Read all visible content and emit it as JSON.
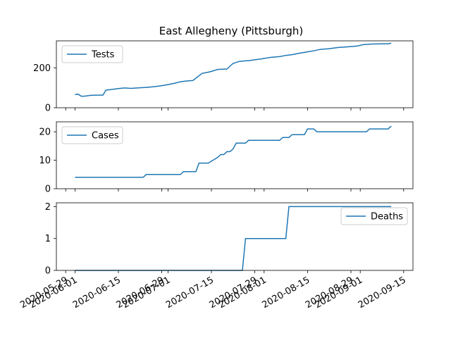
{
  "title": "East Allegheny (Pittsburgh)",
  "line_color": "#1f77b4",
  "chart_data": [
    {
      "type": "line",
      "title": "East Allegheny (Pittsburgh)",
      "xlabel": "",
      "ylabel": "",
      "xlim": [
        "2020-05-26",
        "2020-09-18"
      ],
      "ylim": [
        0,
        335
      ],
      "yticks": [
        0,
        200
      ],
      "legend_position": "top-left",
      "grid": false,
      "series": [
        {
          "name": "Tests",
          "x": [
            "2020-06-01",
            "2020-06-02",
            "2020-06-03",
            "2020-06-04",
            "2020-06-06",
            "2020-06-08",
            "2020-06-10",
            "2020-06-11",
            "2020-06-12",
            "2020-06-15",
            "2020-06-17",
            "2020-06-19",
            "2020-06-22",
            "2020-06-24",
            "2020-06-27",
            "2020-06-30",
            "2020-07-03",
            "2020-07-05",
            "2020-07-07",
            "2020-07-09",
            "2020-07-12",
            "2020-07-14",
            "2020-07-15",
            "2020-07-17",
            "2020-07-20",
            "2020-07-22",
            "2020-07-24",
            "2020-07-26",
            "2020-07-27",
            "2020-07-29",
            "2020-07-31",
            "2020-08-03",
            "2020-08-06",
            "2020-08-08",
            "2020-08-10",
            "2020-08-12",
            "2020-08-15",
            "2020-08-17",
            "2020-08-19",
            "2020-08-22",
            "2020-08-25",
            "2020-08-28",
            "2020-08-31",
            "2020-09-02",
            "2020-09-05",
            "2020-09-08",
            "2020-09-10",
            "2020-09-11"
          ],
          "values": [
            66,
            68,
            58,
            58,
            62,
            63,
            63,
            88,
            90,
            96,
            99,
            97,
            100,
            102,
            106,
            113,
            122,
            130,
            134,
            136,
            172,
            178,
            182,
            192,
            194,
            222,
            232,
            235,
            236,
            240,
            244,
            252,
            256,
            262,
            266,
            272,
            280,
            285,
            292,
            296,
            302,
            305,
            309,
            316,
            319,
            320,
            320,
            324
          ]
        },
        {
          "name": "Cases",
          "x": [
            "2020-06-01",
            "2020-06-23",
            "2020-06-24",
            "2020-07-05",
            "2020-07-06",
            "2020-07-10",
            "2020-07-11",
            "2020-07-14",
            "2020-07-17",
            "2020-07-18",
            "2020-07-19",
            "2020-07-20",
            "2020-07-21",
            "2020-07-22",
            "2020-07-23",
            "2020-07-26",
            "2020-07-27",
            "2020-08-02",
            "2020-08-03",
            "2020-08-06",
            "2020-08-07",
            "2020-08-09",
            "2020-08-10",
            "2020-08-14",
            "2020-08-15",
            "2020-08-17",
            "2020-08-18",
            "2020-09-03",
            "2020-09-04",
            "2020-09-10",
            "2020-09-11"
          ],
          "values": [
            4,
            4,
            5,
            5,
            6,
            6,
            9,
            9,
            11,
            12,
            12,
            13,
            13,
            14,
            16,
            16,
            17,
            17,
            17,
            17,
            18,
            18,
            19,
            19,
            21,
            21,
            20,
            20,
            21,
            21,
            22
          ]
        },
        {
          "name": "Deaths",
          "x": [
            "2020-06-01",
            "2020-07-25",
            "2020-07-26",
            "2020-08-08",
            "2020-08-09",
            "2020-09-11"
          ],
          "values": [
            0,
            0,
            1,
            1,
            2,
            2
          ]
        }
      ],
      "xticks": [
        "2020-05-29",
        "2020-06-01",
        "2020-06-15",
        "2020-06-29",
        "2020-07-01",
        "2020-07-15",
        "2020-07-29",
        "2020-08-01",
        "2020-08-15",
        "2020-08-29",
        "2020-09-01",
        "2020-09-15"
      ]
    }
  ]
}
